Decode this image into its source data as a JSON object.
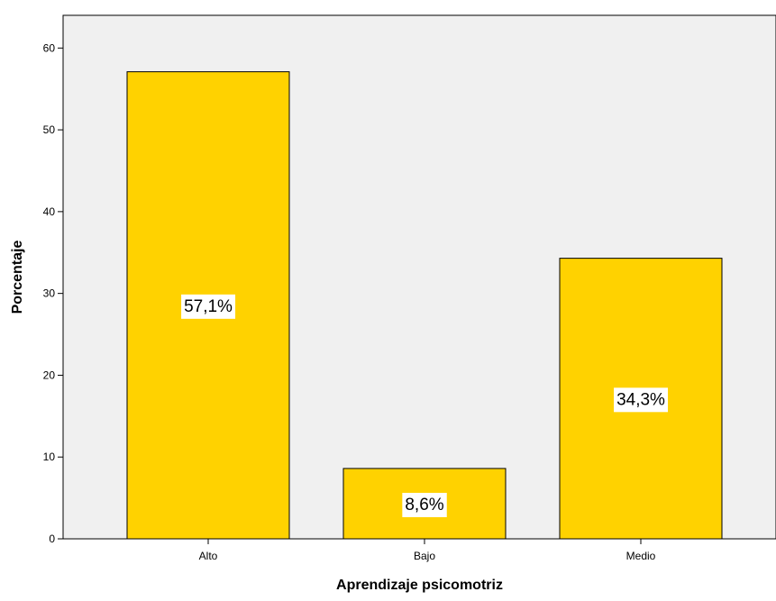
{
  "chart_data": {
    "type": "bar",
    "title": "",
    "xlabel": "Aprendizaje psicomotriz",
    "ylabel": "Porcentaje",
    "categories": [
      "Alto",
      "Bajo",
      "Medio"
    ],
    "values": [
      57.1,
      8.6,
      34.3
    ],
    "data_labels": [
      "57,1%",
      "8,6%",
      "34,3%"
    ],
    "ylim": [
      0,
      64
    ],
    "yticks": [
      0,
      10,
      20,
      30,
      40,
      50,
      60
    ],
    "grid": false,
    "legend": "none",
    "colors": {
      "bar_fill": "#FFD200",
      "bar_stroke": "#000000",
      "plot_background": "#F0F0F0",
      "page_background": "#FFFFFF"
    }
  }
}
